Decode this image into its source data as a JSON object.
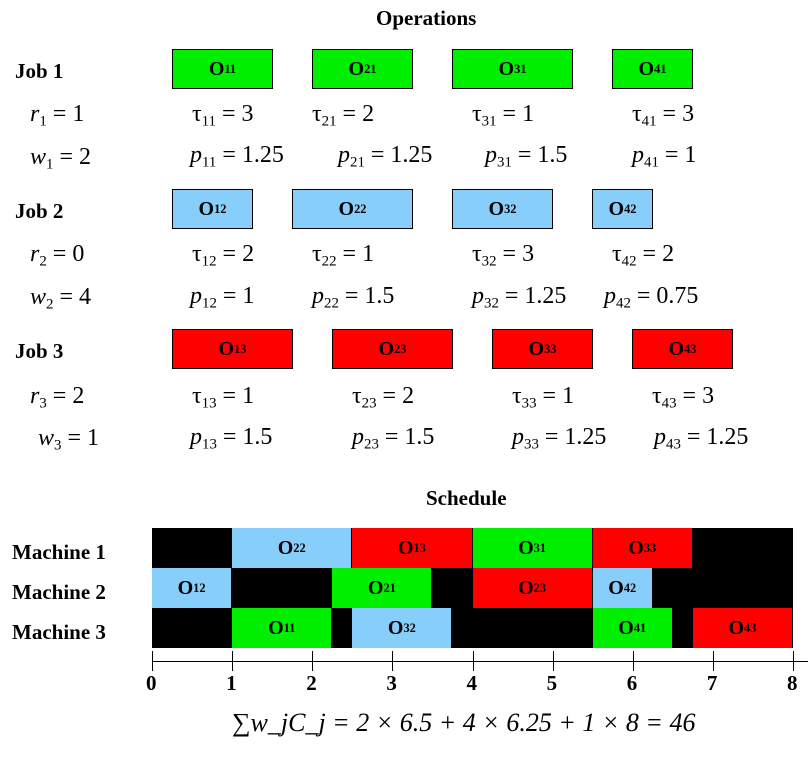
{
  "operations_title": "Operations",
  "schedule_title": "Schedule",
  "colors": {
    "job1": "#00ee00",
    "job2": "#87cefa",
    "job3": "#ff0000",
    "idle": "#000000"
  },
  "jobs": [
    {
      "label": "Job 1",
      "release": {
        "sym": "r",
        "sub": "1",
        "rhs": " = 1"
      },
      "weight": {
        "sym": "w",
        "sub": "1",
        "rhs": " = 2"
      },
      "ops": [
        {
          "name": "O",
          "sub": "11",
          "tau_sub": "11",
          "tau_rhs": " = 3",
          "p_sub": "11",
          "p_rhs": " = 1.25"
        },
        {
          "name": "O",
          "sub": "21",
          "tau_sub": "21",
          "tau_rhs": " = 2",
          "p_sub": "21",
          "p_rhs": " = 1.25"
        },
        {
          "name": "O",
          "sub": "31",
          "tau_sub": "31",
          "tau_rhs": " = 1",
          "p_sub": "31",
          "p_rhs": " = 1.5"
        },
        {
          "name": "O",
          "sub": "41",
          "tau_sub": "41",
          "tau_rhs": " = 3",
          "p_sub": "41",
          "p_rhs": " = 1"
        }
      ]
    },
    {
      "label": "Job 2",
      "release": {
        "sym": "r",
        "sub": "2",
        "rhs": " = 0"
      },
      "weight": {
        "sym": "w",
        "sub": "2",
        "rhs": " = 4"
      },
      "ops": [
        {
          "name": "O",
          "sub": "12",
          "tau_sub": "12",
          "tau_rhs": " = 2",
          "p_sub": "12",
          "p_rhs": " = 1"
        },
        {
          "name": "O",
          "sub": "22",
          "tau_sub": "22",
          "tau_rhs": " = 1",
          "p_sub": "22",
          "p_rhs": " = 1.5"
        },
        {
          "name": "O",
          "sub": "32",
          "tau_sub": "32",
          "tau_rhs": " = 3",
          "p_sub": "32",
          "p_rhs": " = 1.25"
        },
        {
          "name": "O",
          "sub": "42",
          "tau_sub": "42",
          "tau_rhs": " = 2",
          "p_sub": "42",
          "p_rhs": " = 0.75"
        }
      ]
    },
    {
      "label": "Job 3",
      "release": {
        "sym": "r",
        "sub": "3",
        "rhs": " = 2"
      },
      "weight": {
        "sym": "w",
        "sub": "3",
        "rhs": " = 1"
      },
      "ops": [
        {
          "name": "O",
          "sub": "13",
          "tau_sub": "13",
          "tau_rhs": " = 1",
          "p_sub": "13",
          "p_rhs": " = 1.5"
        },
        {
          "name": "O",
          "sub": "23",
          "tau_sub": "23",
          "tau_rhs": " = 2",
          "p_sub": "23",
          "p_rhs": " = 1.5"
        },
        {
          "name": "O",
          "sub": "33",
          "tau_sub": "33",
          "tau_rhs": " = 1",
          "p_sub": "33",
          "p_rhs": " = 1.25"
        },
        {
          "name": "O",
          "sub": "43",
          "tau_sub": "43",
          "tau_rhs": " = 3",
          "p_sub": "43",
          "p_rhs": " = 1.25"
        }
      ]
    }
  ],
  "tau_symbol": "τ",
  "p_symbol": "p",
  "machines": [
    {
      "label": "Machine 1",
      "blocks": [
        {
          "start": 0,
          "end": 1,
          "job": "idle",
          "name": "",
          "sub": ""
        },
        {
          "start": 1,
          "end": 2.5,
          "job": "job2",
          "name": "O",
          "sub": "22"
        },
        {
          "start": 2.5,
          "end": 4,
          "job": "job3",
          "name": "O",
          "sub": "13"
        },
        {
          "start": 4,
          "end": 5.5,
          "job": "job1",
          "name": "O",
          "sub": "31"
        },
        {
          "start": 5.5,
          "end": 6.75,
          "job": "job3",
          "name": "O",
          "sub": "33"
        },
        {
          "start": 6.75,
          "end": 8,
          "job": "idle",
          "name": "",
          "sub": ""
        }
      ]
    },
    {
      "label": "Machine 2",
      "blocks": [
        {
          "start": 0,
          "end": 1,
          "job": "job2",
          "name": "O",
          "sub": "12"
        },
        {
          "start": 1,
          "end": 2.25,
          "job": "idle",
          "name": "",
          "sub": ""
        },
        {
          "start": 2.25,
          "end": 3.5,
          "job": "job1",
          "name": "O",
          "sub": "21"
        },
        {
          "start": 3.5,
          "end": 4,
          "job": "idle",
          "name": "",
          "sub": ""
        },
        {
          "start": 4,
          "end": 5.5,
          "job": "job3",
          "name": "O",
          "sub": "23"
        },
        {
          "start": 5.5,
          "end": 6.25,
          "job": "job2",
          "name": "O",
          "sub": "42"
        },
        {
          "start": 6.25,
          "end": 8,
          "job": "idle",
          "name": "",
          "sub": ""
        }
      ]
    },
    {
      "label": "Machine 3",
      "blocks": [
        {
          "start": 0,
          "end": 1,
          "job": "idle",
          "name": "",
          "sub": ""
        },
        {
          "start": 1,
          "end": 2.25,
          "job": "job1",
          "name": "O",
          "sub": "11"
        },
        {
          "start": 2.25,
          "end": 2.5,
          "job": "idle",
          "name": "",
          "sub": ""
        },
        {
          "start": 2.5,
          "end": 3.75,
          "job": "job2",
          "name": "O",
          "sub": "32"
        },
        {
          "start": 3.75,
          "end": 5.5,
          "job": "idle",
          "name": "",
          "sub": ""
        },
        {
          "start": 5.5,
          "end": 6.5,
          "job": "job1",
          "name": "O",
          "sub": "41"
        },
        {
          "start": 6.5,
          "end": 6.75,
          "job": "idle",
          "name": "",
          "sub": ""
        },
        {
          "start": 6.75,
          "end": 8,
          "job": "job3",
          "name": "O",
          "sub": "43"
        }
      ]
    }
  ],
  "axis": {
    "ticks": [
      "0",
      "1",
      "2",
      "3",
      "4",
      "5",
      "6",
      "7",
      "8"
    ],
    "min": 0,
    "max": 8
  },
  "formula": "∑w_jC_j = 2 × 6.5 + 4 × 6.25 + 1 × 8 = 46"
}
